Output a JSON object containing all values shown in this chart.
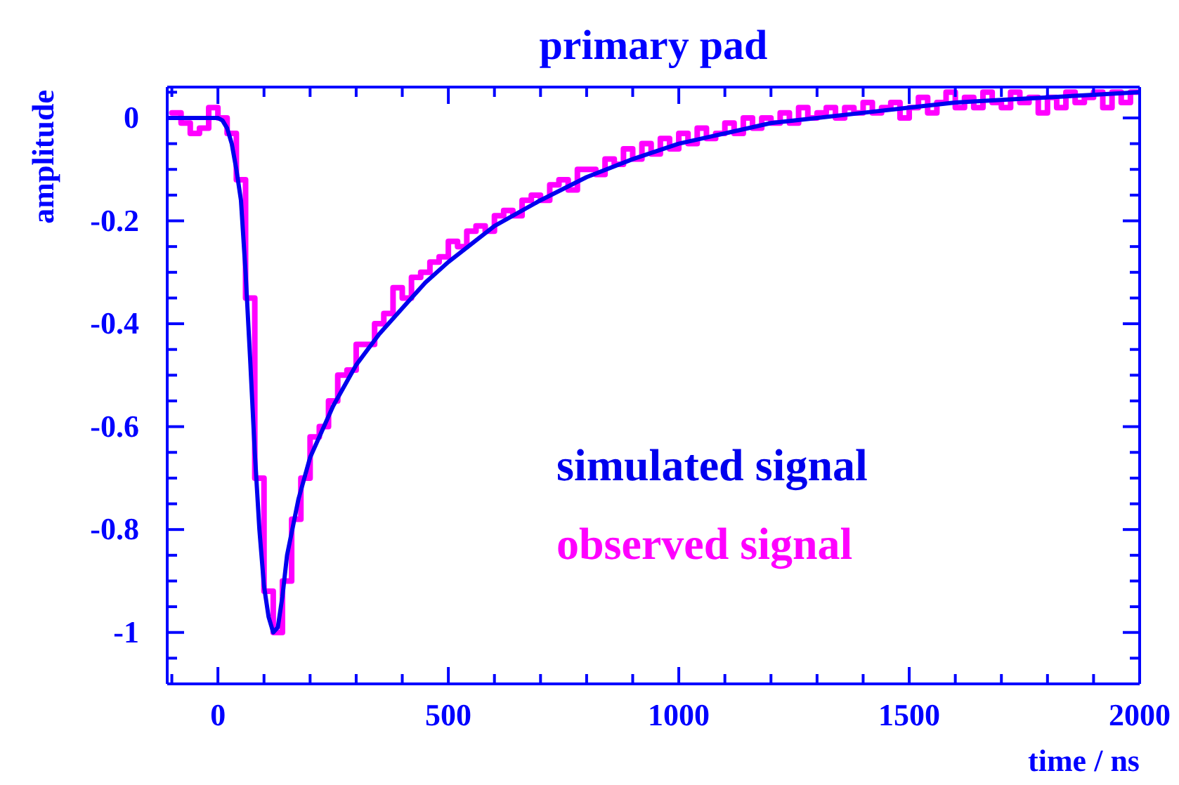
{
  "chart_data": {
    "type": "line",
    "title": "primary pad",
    "xlabel": "time / ns",
    "ylabel": "amplitude",
    "xlim": [
      -110,
      2000
    ],
    "ylim": [
      -1.1,
      0.06
    ],
    "xticks": [
      {
        "value": -100,
        "label": null
      },
      0,
      {
        "value": 100,
        "label": null
      },
      {
        "value": 200,
        "label": null
      },
      {
        "value": 300,
        "label": null
      },
      {
        "value": 400,
        "label": null
      },
      500,
      {
        "value": 600,
        "label": null
      },
      {
        "value": 700,
        "label": null
      },
      {
        "value": 800,
        "label": null
      },
      {
        "value": 900,
        "label": null
      },
      1000,
      {
        "value": 1100,
        "label": null
      },
      {
        "value": 1200,
        "label": null
      },
      {
        "value": 1300,
        "label": null
      },
      {
        "value": 1400,
        "label": null
      },
      1500,
      {
        "value": 1600,
        "label": null
      },
      {
        "value": 1700,
        "label": null
      },
      {
        "value": 1800,
        "label": null
      },
      {
        "value": 1900,
        "label": null
      },
      2000
    ],
    "yticks": [
      {
        "value": -1.05,
        "label": null
      },
      -1,
      {
        "value": -0.95,
        "label": null
      },
      {
        "value": -0.9,
        "label": null
      },
      {
        "value": -0.85,
        "label": null
      },
      -0.8,
      {
        "value": -0.75,
        "label": null
      },
      {
        "value": -0.7,
        "label": null
      },
      {
        "value": -0.65,
        "label": null
      },
      -0.6,
      {
        "value": -0.55,
        "label": null
      },
      {
        "value": -0.5,
        "label": null
      },
      {
        "value": -0.45,
        "label": null
      },
      -0.4,
      {
        "value": -0.35,
        "label": null
      },
      {
        "value": -0.3,
        "label": null
      },
      {
        "value": -0.25,
        "label": null
      },
      -0.2,
      {
        "value": -0.15,
        "label": null
      },
      {
        "value": -0.1,
        "label": null
      },
      {
        "value": -0.05,
        "label": null
      },
      0,
      {
        "value": 0.05,
        "label": null
      }
    ],
    "grid": false,
    "legend": "bottom right",
    "marker": "none",
    "series": [
      {
        "name": "simulated signal",
        "color": "#0000ee",
        "type": "line",
        "line_style": "solid",
        "x": [
          -110,
          -50,
          0,
          10,
          20,
          30,
          40,
          50,
          60,
          70,
          80,
          90,
          100,
          110,
          120,
          130,
          140,
          150,
          175,
          200,
          250,
          300,
          350,
          400,
          450,
          500,
          600,
          700,
          800,
          900,
          1000,
          1100,
          1200,
          1300,
          1400,
          1500,
          1600,
          1700,
          1800,
          1900,
          2000
        ],
        "values": [
          0,
          0,
          0,
          -0.005,
          -0.02,
          -0.05,
          -0.1,
          -0.16,
          -0.3,
          -0.47,
          -0.65,
          -0.8,
          -0.91,
          -0.97,
          -1.0,
          -0.99,
          -0.93,
          -0.85,
          -0.74,
          -0.66,
          -0.56,
          -0.48,
          -0.42,
          -0.37,
          -0.32,
          -0.28,
          -0.21,
          -0.16,
          -0.115,
          -0.08,
          -0.05,
          -0.03,
          -0.01,
          0,
          0.01,
          0.02,
          0.03,
          0.035,
          0.04,
          0.045,
          0.05
        ]
      },
      {
        "name": "observed signal",
        "color": "#ff00ff",
        "type": "step",
        "x": [
          -100,
          -80,
          -60,
          -40,
          -20,
          0,
          20,
          40,
          60,
          80,
          100,
          120,
          140,
          160,
          180,
          200,
          220,
          240,
          260,
          280,
          300,
          320,
          340,
          360,
          380,
          400,
          420,
          440,
          460,
          480,
          500,
          520,
          540,
          560,
          580,
          600,
          620,
          640,
          660,
          680,
          700,
          720,
          740,
          760,
          780,
          800,
          820,
          840,
          860,
          880,
          900,
          920,
          940,
          960,
          980,
          1000,
          1020,
          1040,
          1060,
          1080,
          1100,
          1120,
          1140,
          1160,
          1180,
          1200,
          1220,
          1240,
          1260,
          1280,
          1300,
          1320,
          1340,
          1360,
          1380,
          1400,
          1420,
          1440,
          1460,
          1480,
          1500,
          1520,
          1540,
          1560,
          1580,
          1600,
          1620,
          1640,
          1660,
          1680,
          1700,
          1720,
          1740,
          1760,
          1780,
          1800,
          1820,
          1840,
          1860,
          1880,
          1900,
          1920,
          1940,
          1960,
          1980,
          2000
        ],
        "values": [
          0.01,
          -0.01,
          -0.03,
          -0.02,
          0.02,
          0,
          -0.03,
          -0.12,
          -0.35,
          -0.7,
          -0.92,
          -1.0,
          -0.9,
          -0.78,
          -0.7,
          -0.62,
          -0.6,
          -0.55,
          -0.5,
          -0.49,
          -0.44,
          -0.44,
          -0.4,
          -0.38,
          -0.33,
          -0.35,
          -0.31,
          -0.3,
          -0.28,
          -0.27,
          -0.24,
          -0.25,
          -0.22,
          -0.21,
          -0.22,
          -0.19,
          -0.18,
          -0.19,
          -0.16,
          -0.15,
          -0.16,
          -0.13,
          -0.12,
          -0.14,
          -0.1,
          -0.1,
          -0.11,
          -0.08,
          -0.09,
          -0.06,
          -0.08,
          -0.05,
          -0.07,
          -0.04,
          -0.06,
          -0.03,
          -0.05,
          -0.02,
          -0.04,
          -0.03,
          -0.01,
          -0.03,
          0,
          -0.02,
          0,
          -0.01,
          0.01,
          -0.01,
          0.02,
          0,
          0.01,
          0.02,
          0,
          0.02,
          0.01,
          0.03,
          0.01,
          0.02,
          0.03,
          0,
          0.02,
          0.04,
          0.01,
          0.03,
          0.05,
          0.02,
          0.04,
          0.02,
          0.05,
          0.03,
          0.02,
          0.05,
          0.03,
          0.04,
          0.01,
          0.04,
          0.02,
          0.05,
          0.03,
          0.04,
          0.05,
          0.02,
          0.05,
          0.03,
          0.05,
          0.05
        ]
      }
    ]
  }
}
